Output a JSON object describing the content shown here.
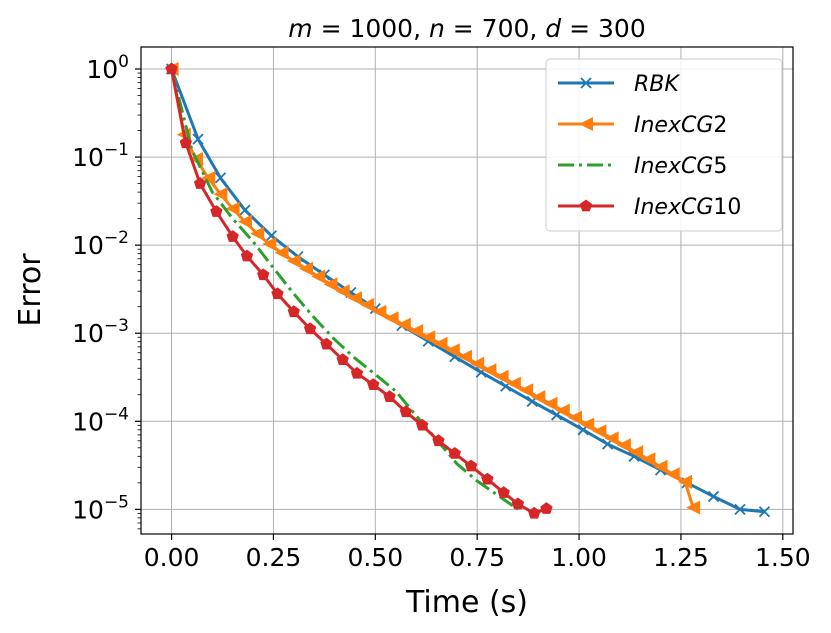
{
  "chart_data": {
    "type": "line",
    "title": {
      "parts": [
        "m",
        " = 1000, ",
        "n",
        " = 700, ",
        "d",
        " = 300"
      ]
    },
    "xlabel": "Time (s)",
    "ylabel": "Error",
    "xlim": [
      -0.075,
      1.525
    ],
    "ylim_log10": [
      -5.28,
      0.25
    ],
    "yscale": "log",
    "grid": true,
    "legend": "top-right",
    "x_ticks": [
      {
        "value": 0.0,
        "label": "0.00"
      },
      {
        "value": 0.25,
        "label": "0.25"
      },
      {
        "value": 0.5,
        "label": "0.50"
      },
      {
        "value": 0.75,
        "label": "0.75"
      },
      {
        "value": 1.0,
        "label": "1.00"
      },
      {
        "value": 1.25,
        "label": "1.25"
      },
      {
        "value": 1.5,
        "label": "1.50"
      }
    ],
    "y_ticks": [
      {
        "exp": 0,
        "base": "10",
        "sup": "0"
      },
      {
        "exp": -1,
        "base": "10",
        "sup": "−1"
      },
      {
        "exp": -2,
        "base": "10",
        "sup": "−2"
      },
      {
        "exp": -3,
        "base": "10",
        "sup": "−3"
      },
      {
        "exp": -4,
        "base": "10",
        "sup": "−4"
      },
      {
        "exp": -5,
        "base": "10",
        "sup": "−5"
      }
    ],
    "series": [
      {
        "name": "RBK",
        "label_base": "RBK",
        "label_sub": "",
        "color": "#1f77b4",
        "marker": "x",
        "dash": "",
        "points": [
          [
            0.0,
            1.0
          ],
          [
            0.065,
            0.16
          ],
          [
            0.12,
            0.058
          ],
          [
            0.18,
            0.025
          ],
          [
            0.245,
            0.0128
          ],
          [
            0.31,
            0.0074
          ],
          [
            0.375,
            0.0046
          ],
          [
            0.44,
            0.0029
          ],
          [
            0.5,
            0.0019
          ],
          [
            0.565,
            0.00122
          ],
          [
            0.63,
            0.00081
          ],
          [
            0.695,
            0.00054
          ],
          [
            0.76,
            0.00036
          ],
          [
            0.82,
            0.00025
          ],
          [
            0.885,
            0.000168
          ],
          [
            0.945,
            0.000118
          ],
          [
            1.01,
            8e-05
          ],
          [
            1.07,
            5.5e-05
          ],
          [
            1.135,
            4e-05
          ],
          [
            1.2,
            2.8e-05
          ],
          [
            1.265,
            2e-05
          ],
          [
            1.33,
            1.4e-05
          ],
          [
            1.395,
            1e-05
          ],
          [
            1.455,
            9.4e-06
          ]
        ]
      },
      {
        "name": "InexCG2",
        "label_base": "InexCG",
        "label_sub": "2",
        "color": "#ff7f0e",
        "marker": "triangle-left",
        "dash": "",
        "points": [
          [
            0.0,
            1.0
          ],
          [
            0.03,
            0.18
          ],
          [
            0.06,
            0.095
          ],
          [
            0.09,
            0.058
          ],
          [
            0.12,
            0.038
          ],
          [
            0.15,
            0.026
          ],
          [
            0.18,
            0.0185
          ],
          [
            0.21,
            0.0135
          ],
          [
            0.24,
            0.0103
          ],
          [
            0.27,
            0.0082
          ],
          [
            0.3,
            0.0066
          ],
          [
            0.33,
            0.0054
          ],
          [
            0.36,
            0.0044
          ],
          [
            0.39,
            0.0036
          ],
          [
            0.42,
            0.003
          ],
          [
            0.45,
            0.0025
          ],
          [
            0.48,
            0.0021
          ],
          [
            0.51,
            0.00175
          ],
          [
            0.54,
            0.00148
          ],
          [
            0.57,
            0.00125
          ],
          [
            0.6,
            0.00106
          ],
          [
            0.63,
            0.0009
          ],
          [
            0.66,
            0.00076
          ],
          [
            0.69,
            0.00064
          ],
          [
            0.72,
            0.00054
          ],
          [
            0.75,
            0.00045
          ],
          [
            0.78,
            0.00038
          ],
          [
            0.81,
            0.00032
          ],
          [
            0.84,
            0.000268
          ],
          [
            0.87,
            0.000225
          ],
          [
            0.9,
            0.000188
          ],
          [
            0.93,
            0.000158
          ],
          [
            0.96,
            0.000132
          ],
          [
            0.99,
            0.00011
          ],
          [
            1.02,
            9.2e-05
          ],
          [
            1.05,
            7.7e-05
          ],
          [
            1.08,
            6.4e-05
          ],
          [
            1.11,
            5.35e-05
          ],
          [
            1.14,
            4.45e-05
          ],
          [
            1.17,
            3.7e-05
          ],
          [
            1.2,
            3.05e-05
          ],
          [
            1.23,
            2.5e-05
          ],
          [
            1.26,
            2.05e-05
          ],
          [
            1.28,
            1.05e-05
          ]
        ]
      },
      {
        "name": "InexCG5",
        "label_base": "InexCG",
        "label_sub": "5",
        "color": "#2ca02c",
        "marker": "none",
        "dash": "16 5 3 5",
        "points": [
          [
            0.0,
            1.0
          ],
          [
            0.05,
            0.12
          ],
          [
            0.1,
            0.04
          ],
          [
            0.15,
            0.02
          ],
          [
            0.2,
            0.011
          ],
          [
            0.25,
            0.0055
          ],
          [
            0.3,
            0.0028
          ],
          [
            0.35,
            0.0015
          ],
          [
            0.4,
            0.00085
          ],
          [
            0.45,
            0.00052
          ],
          [
            0.5,
            0.00034
          ],
          [
            0.55,
            0.00022
          ],
          [
            0.58,
            0.00015
          ],
          [
            0.62,
            9e-05
          ],
          [
            0.66,
            5.5e-05
          ],
          [
            0.7,
            3.3e-05
          ],
          [
            0.75,
            2.1e-05
          ],
          [
            0.8,
            1.45e-05
          ],
          [
            0.85,
            1e-05
          ]
        ]
      },
      {
        "name": "InexCG10",
        "label_base": "InexCG",
        "label_sub": "10",
        "color": "#d62728",
        "marker": "pentagon",
        "dash": "",
        "points": [
          [
            0.0,
            1.0
          ],
          [
            0.035,
            0.145
          ],
          [
            0.07,
            0.05
          ],
          [
            0.11,
            0.024
          ],
          [
            0.15,
            0.0125
          ],
          [
            0.185,
            0.0075
          ],
          [
            0.225,
            0.0046
          ],
          [
            0.26,
            0.0028
          ],
          [
            0.3,
            0.00175
          ],
          [
            0.34,
            0.00112
          ],
          [
            0.38,
            0.00075
          ],
          [
            0.42,
            0.0005
          ],
          [
            0.455,
            0.00035
          ],
          [
            0.495,
            0.00026
          ],
          [
            0.535,
            0.00019
          ],
          [
            0.575,
            0.000128
          ],
          [
            0.615,
            9e-05
          ],
          [
            0.655,
            6e-05
          ],
          [
            0.695,
            4.3e-05
          ],
          [
            0.735,
            3.1e-05
          ],
          [
            0.775,
            2.2e-05
          ],
          [
            0.815,
            1.55e-05
          ],
          [
            0.85,
            1.15e-05
          ],
          [
            0.89,
            9e-06
          ],
          [
            0.92,
            1.02e-05
          ]
        ]
      }
    ]
  }
}
